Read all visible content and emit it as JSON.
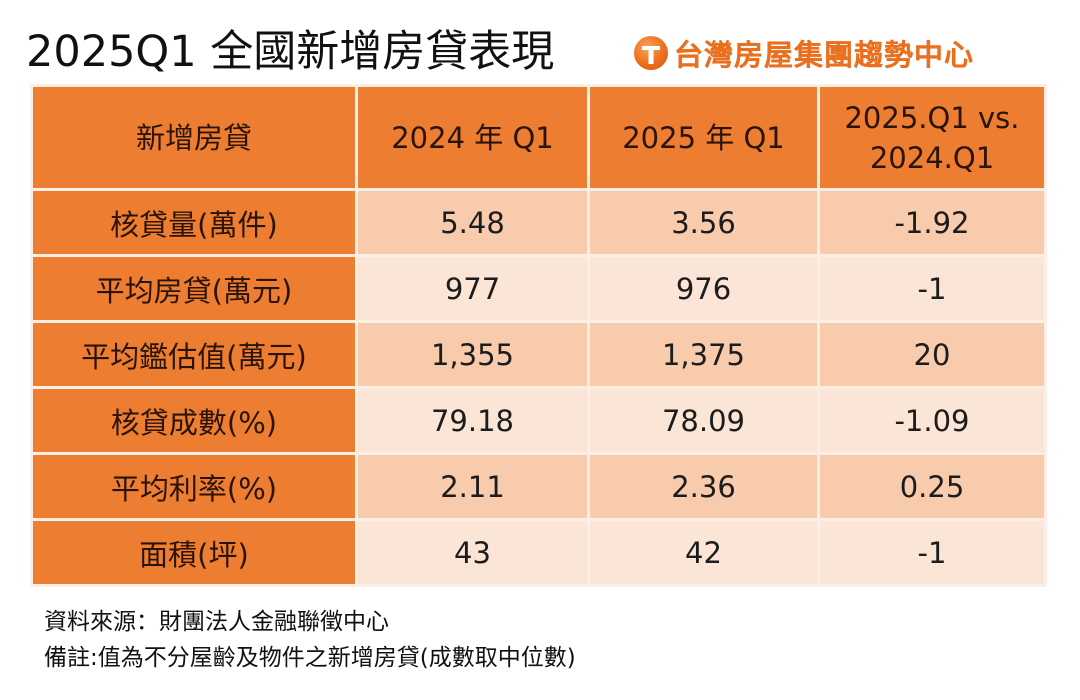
{
  "title": "2025Q1 全國新增房貸表現",
  "brand": {
    "logo_icon": "taiwan-realty-t-logo",
    "name": "台灣房屋集團趨勢中心",
    "color": "#ec6f1c"
  },
  "table": {
    "header_color": "#ed7d31",
    "row_dark_color": "#f8cbad",
    "row_light_color": "#fbe5d6",
    "columns": [
      "新增房貸",
      "2024 年 Q1",
      "2025 年 Q1",
      "2025.Q1 vs.\n2024.Q1"
    ],
    "column_lines": [
      [
        "新增房貸"
      ],
      [
        "2024 年 Q1"
      ],
      [
        "2025 年 Q1"
      ],
      [
        "2025.Q1 vs.",
        "2024.Q1"
      ]
    ],
    "rows": [
      {
        "label": "核貸量(萬件)",
        "q1_2024": "5.48",
        "q1_2025": "3.56",
        "diff": "-1.92",
        "shade": "dark"
      },
      {
        "label": "平均房貸(萬元)",
        "q1_2024": "977",
        "q1_2025": "976",
        "diff": "-1",
        "shade": "light"
      },
      {
        "label": "平均鑑估值(萬元)",
        "q1_2024": "1,355",
        "q1_2025": "1,375",
        "diff": "20",
        "shade": "dark"
      },
      {
        "label": "核貸成數(%)",
        "q1_2024": "79.18",
        "q1_2025": "78.09",
        "diff": "-1.09",
        "shade": "light"
      },
      {
        "label": "平均利率(%)",
        "q1_2024": "2.11",
        "q1_2025": "2.36",
        "diff": "0.25",
        "shade": "dark"
      },
      {
        "label": "面積(坪)",
        "q1_2024": "43",
        "q1_2025": "42",
        "diff": "-1",
        "shade": "light"
      }
    ]
  },
  "notes": {
    "source": "資料來源：財團法人金融聯徵中心",
    "remark": "備註:值為不分屋齡及物件之新增房貸(成數取中位數)"
  }
}
